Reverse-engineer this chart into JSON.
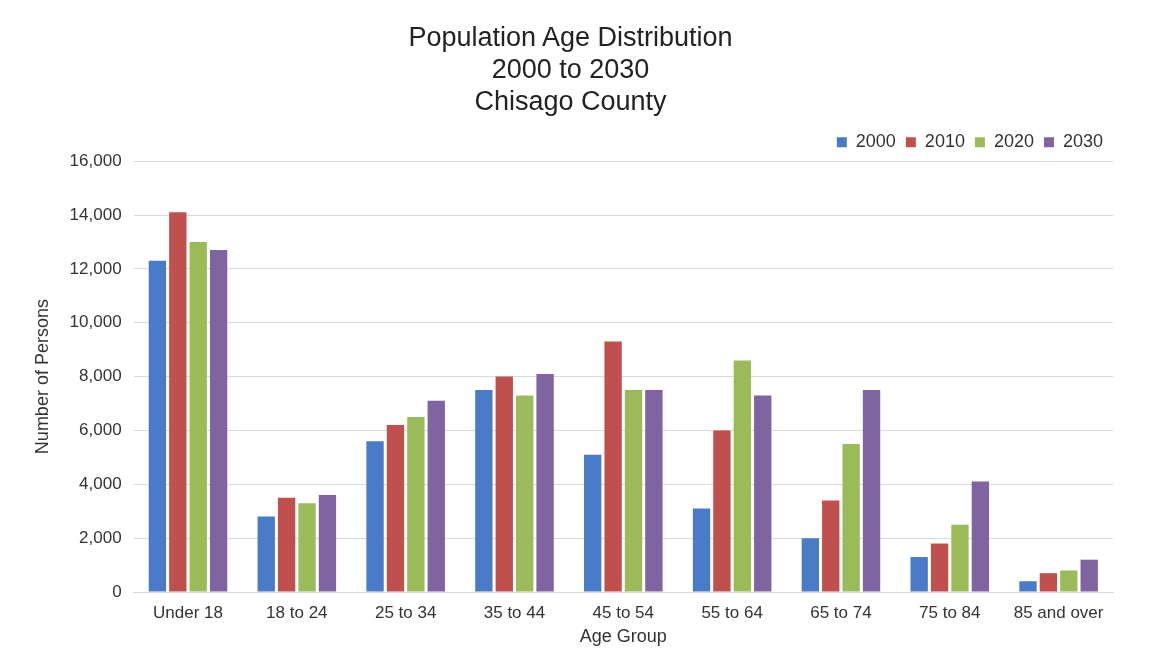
{
  "chart_data": {
    "type": "bar",
    "title": "Population Age Distribution\n2000 to 2030\nChisago County",
    "xlabel": "Age Group",
    "ylabel": "Number of Persons",
    "categories": [
      "Under 18",
      "18 to 24",
      "25 to 34",
      "35 to 44",
      "45 to 54",
      "55 to 64",
      "65 to 74",
      "75 to 84",
      "85 and over"
    ],
    "series": [
      {
        "name": "2000",
        "color": "#4a7bc8",
        "values": [
          12300,
          2800,
          5600,
          7500,
          5100,
          3100,
          2000,
          1300,
          400
        ]
      },
      {
        "name": "2010",
        "color": "#c0504d",
        "values": [
          14100,
          3500,
          6200,
          8000,
          9300,
          6000,
          3400,
          1800,
          700
        ]
      },
      {
        "name": "2020",
        "color": "#9bbb59",
        "values": [
          13000,
          3300,
          6500,
          7300,
          7500,
          8600,
          5500,
          2500,
          800
        ]
      },
      {
        "name": "2030",
        "color": "#8064a2",
        "values": [
          12700,
          3600,
          7100,
          8100,
          7500,
          7300,
          7500,
          4100,
          1200
        ]
      }
    ],
    "ylim": [
      0,
      16000
    ],
    "yticks": [
      0,
      {
        "value": 2000,
        "label": "2,000"
      },
      {
        "value": 4000,
        "label": "4,000"
      },
      {
        "value": 6000,
        "label": "6,000"
      },
      {
        "value": 8000,
        "label": "8,000"
      },
      {
        "value": 10000,
        "label": "10,000"
      },
      {
        "value": 12000,
        "label": "12,000"
      },
      {
        "value": 14000,
        "label": "14,000"
      },
      {
        "value": 16000,
        "label": "16,000"
      }
    ],
    "grid": "y",
    "legend": "top right"
  }
}
